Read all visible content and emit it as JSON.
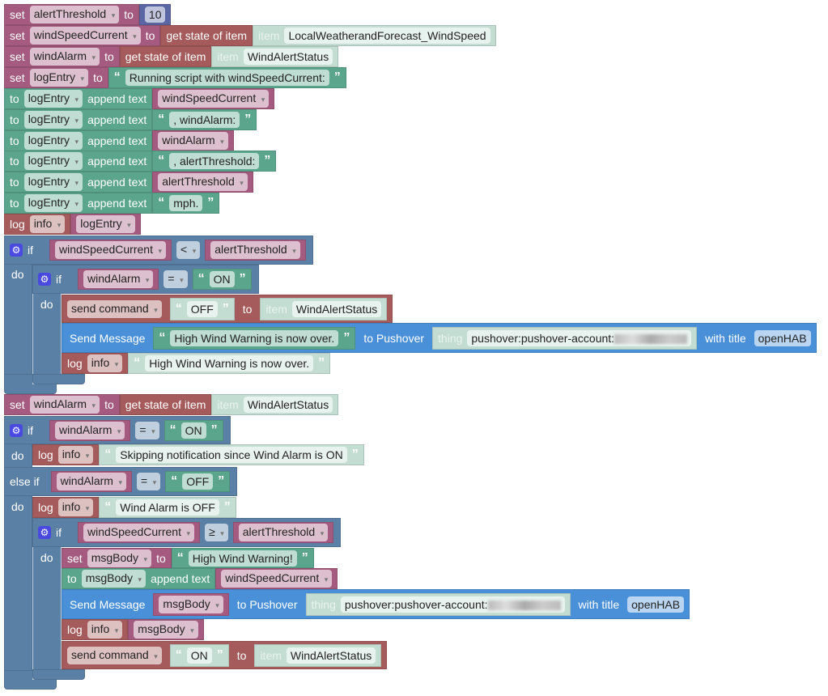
{
  "rows": [
    {
      "kw": "set",
      "var": "alertThreshold",
      "to": "to",
      "num": "10"
    },
    {
      "kw": "set",
      "var": "windSpeedCurrent",
      "to": "to",
      "getstate": "get state of item",
      "item_kw": "item",
      "item": "LocalWeatherandForecast_WindSpeed"
    },
    {
      "kw": "set",
      "var": "windAlarm",
      "to": "to",
      "getstate": "get state of item",
      "item_kw": "item",
      "item": "WindAlertStatus"
    },
    {
      "kw": "set",
      "var": "logEntry",
      "to": "to",
      "text": "Running script with windSpeedCurrent:"
    },
    {
      "kw": "to",
      "var": "logEntry",
      "append": "append text",
      "value_var": "windSpeedCurrent"
    },
    {
      "kw": "to",
      "var": "logEntry",
      "append": "append text",
      "text": ", windAlarm:"
    },
    {
      "kw": "to",
      "var": "logEntry",
      "append": "append text",
      "value_var": "windAlarm"
    },
    {
      "kw": "to",
      "var": "logEntry",
      "append": "append text",
      "text": ", alertThreshold:"
    },
    {
      "kw": "to",
      "var": "logEntry",
      "append": "append text",
      "value_var": "alertThreshold"
    },
    {
      "kw": "to",
      "var": "logEntry",
      "append": "append text",
      "text": "mph."
    },
    {
      "kw": "log",
      "level": "info",
      "value_var": "logEntry"
    }
  ],
  "if1": {
    "if": "if",
    "do": "do",
    "left": "windSpeedCurrent",
    "op": "<",
    "right": "alertThreshold",
    "inner": {
      "if": "if",
      "do": "do",
      "left": "windAlarm",
      "op": "=",
      "right": "ON"
    },
    "send": {
      "cmd": "send command",
      "value": "OFF",
      "to": "to",
      "item_kw": "item",
      "item": "WindAlertStatus"
    },
    "msg": {
      "label": "Send Message",
      "message": "High Wind Warning is now over.",
      "to": "to Pushover",
      "thing_kw": "thing",
      "thing": "pushover:pushover-account:",
      "title_label": "with title",
      "title": "openHAB"
    },
    "log": {
      "log": "log",
      "level": "info",
      "text": "High Wind Warning is now over."
    }
  },
  "set2": {
    "kw": "set",
    "var": "windAlarm",
    "to": "to",
    "getstate": "get state of item",
    "item_kw": "item",
    "item": "WindAlertStatus"
  },
  "if2": {
    "if": "if",
    "do": "do",
    "elseif": "else if",
    "left": "windAlarm",
    "op": "=",
    "right": "ON",
    "log1": {
      "log": "log",
      "level": "info",
      "text": "Skipping notification since Wind Alarm is ON"
    },
    "else_left": "windAlarm",
    "else_op": "=",
    "else_right": "OFF",
    "log2": {
      "log": "log",
      "level": "info",
      "text": "Wind Alarm is OFF"
    },
    "inner": {
      "if": "if",
      "do": "do",
      "left": "windSpeedCurrent",
      "op": "≥",
      "right": "alertThreshold"
    },
    "set": {
      "kw": "set",
      "var": "msgBody",
      "to": "to",
      "text": "High Wind Warning!"
    },
    "append": {
      "kw": "to",
      "var": "msgBody",
      "append": "append text",
      "value_var": "windSpeedCurrent"
    },
    "msg": {
      "label": "Send Message",
      "message_var": "msgBody",
      "to": "to Pushover",
      "thing_kw": "thing",
      "thing": "pushover:pushover-account:",
      "title_label": "with title",
      "title": "openHAB"
    },
    "log3": {
      "log": "log",
      "level": "info",
      "value_var": "msgBody"
    },
    "send": {
      "cmd": "send command",
      "value": "ON",
      "to": "to",
      "item_kw": "item",
      "item": "WindAlertStatus"
    }
  },
  "colors": {
    "variable": "#a55b80",
    "text": "#5ba58c",
    "openhab_item": "#a55b5b",
    "logic": "#5b80a5",
    "pushover": "#4a90d9",
    "number": "#5b67a5",
    "item_literal": "#c3ddd3"
  }
}
